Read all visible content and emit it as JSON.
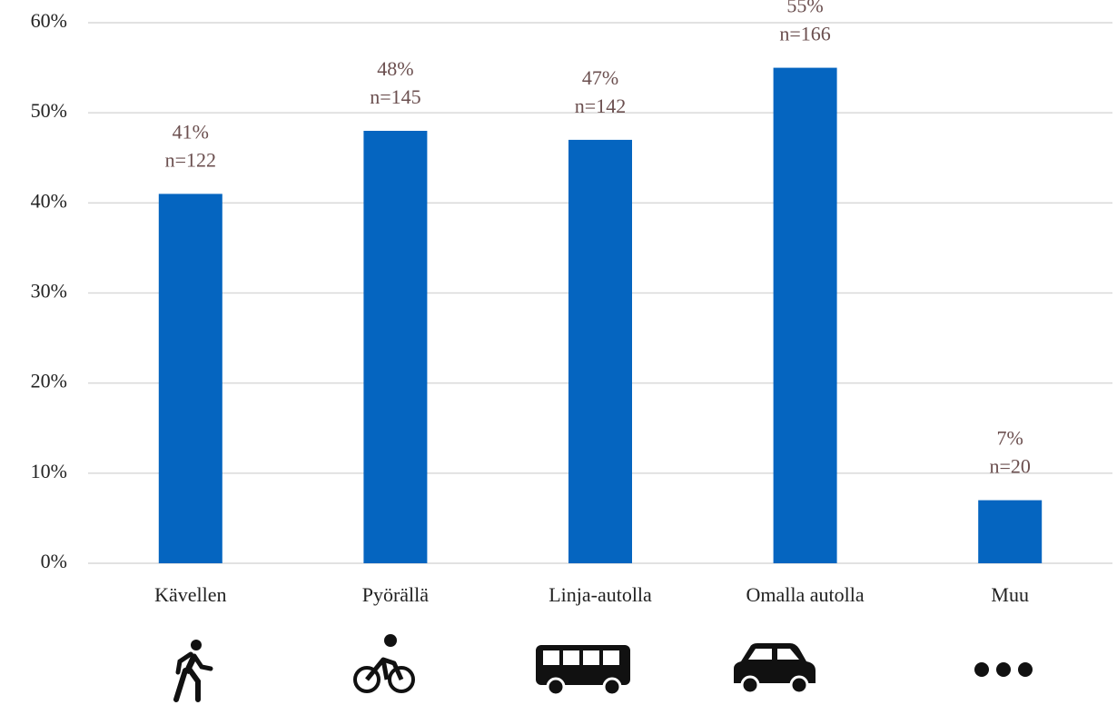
{
  "chart_data": {
    "type": "bar",
    "categories": [
      "Kävellen",
      "Pyörällä",
      "Linja-autolla",
      "Omalla autolla",
      "Muu"
    ],
    "values": [
      41,
      48,
      47,
      55,
      7
    ],
    "value_labels": [
      "41%",
      "48%",
      "47%",
      "55%",
      "7%"
    ],
    "n_labels": [
      "n=122",
      "n=145",
      "n=142",
      "n=166",
      "n=20"
    ],
    "color": "#0565c0",
    "ylim": [
      0,
      60
    ],
    "yticks": [
      {
        "value": 0,
        "label": "0%"
      },
      {
        "value": 10,
        "label": "10%"
      },
      {
        "value": 20,
        "label": "20%"
      },
      {
        "value": 30,
        "label": "30%"
      },
      {
        "value": 40,
        "label": "40%"
      },
      {
        "value": 50,
        "label": "50%"
      },
      {
        "value": 60,
        "label": "60%"
      }
    ],
    "grid": true
  }
}
